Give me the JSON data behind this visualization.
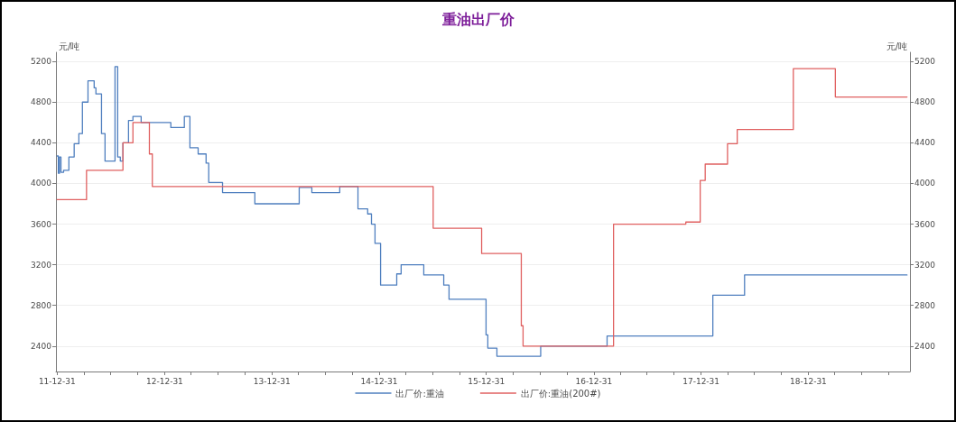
{
  "chart_data": {
    "type": "step",
    "title": "重油出厂价",
    "ylabel": "元/吨",
    "y2label": "元/吨",
    "series": [
      {
        "name": "出厂价:重油",
        "color": "#4f7fbf",
        "x": [
          "2011-12-31",
          "2012-01-04",
          "2012-01-08",
          "2012-01-13",
          "2012-01-22",
          "2012-02-09",
          "2012-02-27",
          "2012-03-14",
          "2012-03-26",
          "2012-04-14",
          "2012-05-05",
          "2012-05-11",
          "2012-05-30",
          "2012-06-11",
          "2012-07-15",
          "2012-07-24",
          "2012-08-02",
          "2012-08-11",
          "2012-08-30",
          "2012-09-14",
          "2012-10-12",
          "2013-01-21",
          "2013-03-08",
          "2013-03-27",
          "2013-04-24",
          "2013-05-21",
          "2013-05-30",
          "2013-07-16",
          "2013-11-03",
          "2014-04-03",
          "2014-05-16",
          "2014-08-19",
          "2014-10-20",
          "2014-11-22",
          "2014-12-05",
          "2014-12-17",
          "2015-01-05",
          "2015-03-01",
          "2015-03-16",
          "2015-06-01",
          "2015-08-08",
          "2015-08-26",
          "2015-12-30",
          "2016-01-05",
          "2016-02-05",
          "2016-07-03",
          "2017-02-14",
          "2018-02-09",
          "2018-05-28",
          "2019-12-02"
        ],
        "values": [
          4270,
          4100,
          4260,
          4110,
          4130,
          4260,
          4390,
          4490,
          4800,
          5010,
          4940,
          4880,
          4490,
          4220,
          5150,
          4260,
          4220,
          4400,
          4620,
          4660,
          4600,
          4550,
          4660,
          4350,
          4290,
          4200,
          4010,
          3910,
          3800,
          3960,
          3910,
          3970,
          3750,
          3700,
          3600,
          3410,
          3000,
          3110,
          3200,
          3100,
          3000,
          2860,
          2510,
          2380,
          2300,
          2400,
          2500,
          2900,
          3100,
          3100
        ]
      },
      {
        "name": "出厂价:重油(200#)",
        "color": "#e06060",
        "x": [
          "2011-12-31",
          "2012-04-09",
          "2012-08-11",
          "2012-09-14",
          "2012-11-09",
          "2012-11-19",
          "2015-07-03",
          "2015-12-15",
          "2016-04-28",
          "2016-05-04",
          "2017-03-08",
          "2017-11-09",
          "2017-12-28",
          "2018-01-14",
          "2018-03-31",
          "2018-05-03",
          "2018-11-10",
          "2019-04-02",
          "2019-12-02"
        ],
        "values": [
          3840,
          4130,
          4400,
          4600,
          4290,
          3970,
          3560,
          3310,
          2600,
          2400,
          3600,
          3620,
          4030,
          4190,
          4390,
          4530,
          5130,
          4850,
          4850
        ]
      }
    ],
    "xlim": [
      "2011-12-27",
      "2019-12-12"
    ],
    "xticks": [
      {
        "value": "2011-12-31",
        "label": "11-12-31"
      },
      {
        "value": "2012-03-31",
        "label": null
      },
      {
        "value": "2012-06-30",
        "label": null
      },
      {
        "value": "2012-09-30",
        "label": null
      },
      {
        "value": "2012-12-31",
        "label": "12-12-31"
      },
      {
        "value": "2013-03-31",
        "label": null
      },
      {
        "value": "2013-06-30",
        "label": null
      },
      {
        "value": "2013-09-30",
        "label": null
      },
      {
        "value": "2013-12-31",
        "label": "13-12-31"
      },
      {
        "value": "2014-03-31",
        "label": null
      },
      {
        "value": "2014-06-30",
        "label": null
      },
      {
        "value": "2014-09-30",
        "label": null
      },
      {
        "value": "2014-12-31",
        "label": "14-12-31"
      },
      {
        "value": "2015-03-31",
        "label": null
      },
      {
        "value": "2015-06-30",
        "label": null
      },
      {
        "value": "2015-09-30",
        "label": null
      },
      {
        "value": "2015-12-31",
        "label": "15-12-31"
      },
      {
        "value": "2016-03-31",
        "label": null
      },
      {
        "value": "2016-06-30",
        "label": null
      },
      {
        "value": "2016-09-30",
        "label": null
      },
      {
        "value": "2016-12-31",
        "label": "16-12-31"
      },
      {
        "value": "2017-03-31",
        "label": null
      },
      {
        "value": "2017-06-30",
        "label": null
      },
      {
        "value": "2017-09-30",
        "label": null
      },
      {
        "value": "2017-12-31",
        "label": "17-12-31"
      },
      {
        "value": "2018-03-31",
        "label": null
      },
      {
        "value": "2018-06-30",
        "label": null
      },
      {
        "value": "2018-09-30",
        "label": null
      },
      {
        "value": "2018-12-31",
        "label": "18-12-31"
      },
      {
        "value": "2019-03-31",
        "label": null
      },
      {
        "value": "2019-06-30",
        "label": null
      },
      {
        "value": "2019-09-30",
        "label": null
      }
    ],
    "ylim": [
      2150,
      5290
    ],
    "yticks": [
      2400,
      2800,
      3200,
      3600,
      4000,
      4400,
      4800,
      5200
    ],
    "y2lim": [
      2150,
      5290
    ],
    "y2ticks": [
      2400,
      2800,
      3200,
      3600,
      4000,
      4400,
      4800,
      5200
    ],
    "grid": "y",
    "legend": "bottom",
    "marker": "none",
    "line_style": "solid"
  }
}
